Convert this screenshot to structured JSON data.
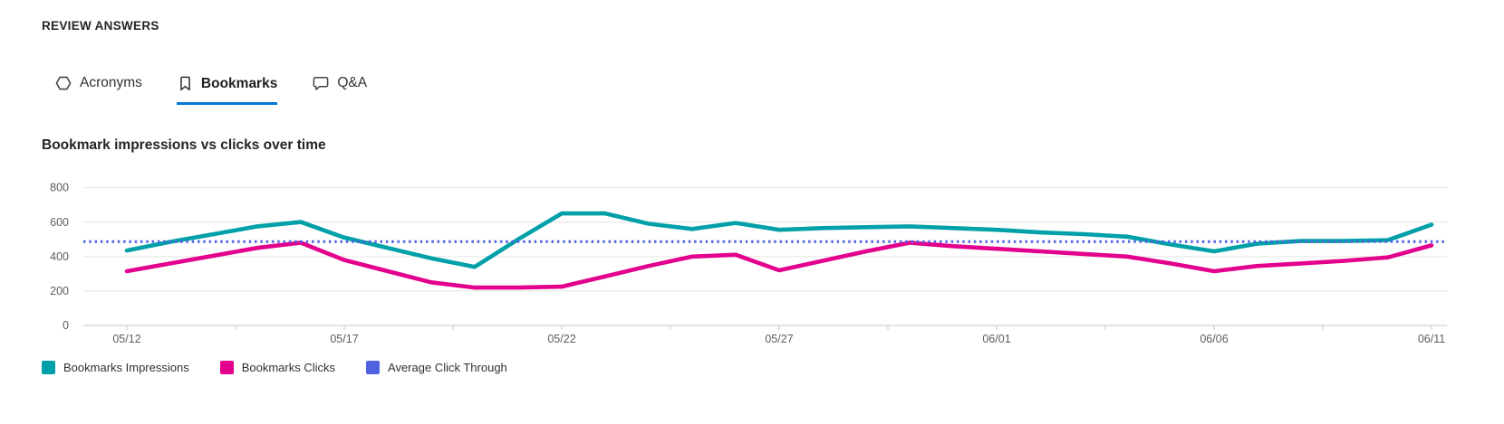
{
  "header": {
    "title": "REVIEW ANSWERS"
  },
  "tabs": [
    {
      "label": "Acronyms",
      "icon": "hexagon-icon",
      "selected": false
    },
    {
      "label": "Bookmarks",
      "icon": "bookmark-icon",
      "selected": true
    },
    {
      "label": "Q&A",
      "icon": "chat-icon",
      "selected": false
    }
  ],
  "accent": {
    "tab_underline": "#0078D4"
  },
  "chart_data": {
    "type": "line",
    "title": "Bookmark impressions vs clicks over time",
    "xlabel": "",
    "ylabel": "",
    "ylim": [
      0,
      800
    ],
    "yticks": [
      0,
      200,
      400,
      600,
      800
    ],
    "grid": "horizontal",
    "legend_position": "bottom-left",
    "x": [
      "05/12",
      "05/13",
      "05/14",
      "05/15",
      "05/16",
      "05/17",
      "05/18",
      "05/19",
      "05/20",
      "05/21",
      "05/22",
      "05/23",
      "05/24",
      "05/25",
      "05/26",
      "05/27",
      "05/28",
      "05/29",
      "05/30",
      "05/31",
      "06/01",
      "06/02",
      "06/03",
      "06/04",
      "06/05",
      "06/06",
      "06/07",
      "06/08",
      "06/09",
      "06/10",
      "06/11"
    ],
    "x_tick_labels": [
      "05/12",
      "05/17",
      "05/22",
      "05/27",
      "06/01",
      "06/06",
      "06/11"
    ],
    "series": [
      {
        "name": "Bookmarks Impressions",
        "type": "line",
        "color": "#00A0A8",
        "values": [
          435,
          485,
          530,
          575,
          600,
          510,
          450,
          390,
          340,
          500,
          650,
          650,
          590,
          560,
          595,
          555,
          565,
          570,
          575,
          565,
          555,
          540,
          530,
          515,
          470,
          430,
          475,
          490,
          490,
          495,
          585
        ]
      },
      {
        "name": "Bookmarks Clicks",
        "type": "line",
        "color": "#E3008C",
        "values": [
          315,
          360,
          405,
          450,
          480,
          380,
          315,
          250,
          220,
          220,
          225,
          285,
          345,
          400,
          410,
          320,
          375,
          430,
          480,
          460,
          445,
          430,
          415,
          400,
          360,
          315,
          345,
          360,
          375,
          395,
          465
        ]
      },
      {
        "name": "Average Click Through",
        "type": "reference-line",
        "style": "dotted",
        "color": "#4F62E0",
        "value": 487
      }
    ]
  }
}
